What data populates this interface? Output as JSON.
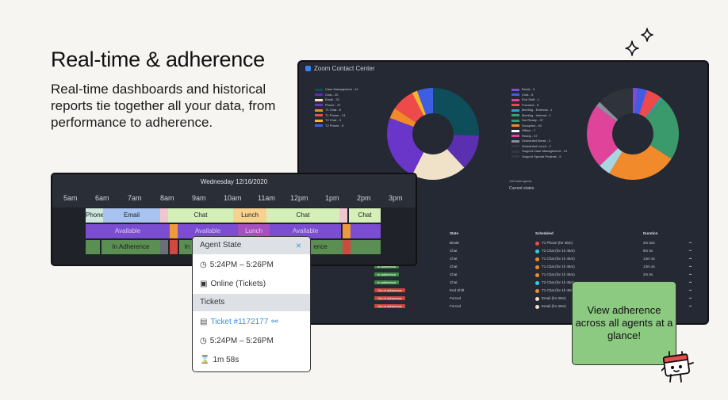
{
  "hero": {
    "title": "Real-time & adherence",
    "subtitle": "Real-time dashboards and historical reports tie together all your data, from performance to adherence."
  },
  "dashboard": {
    "app_title": "Zoom Contact Center",
    "left_legend": [
      {
        "label": "Case Management - 41",
        "color": "#0e4d5a"
      },
      {
        "label": "Chat - 20",
        "color": "#5a2fb0"
      },
      {
        "label": "Email - 31",
        "color": "#efe2c9"
      },
      {
        "label": "Phone - 37",
        "color": "#6a35c9"
      },
      {
        "label": "T1 Chat - 6",
        "color": "#f08a2a"
      },
      {
        "label": "T1 Phone - 13",
        "color": "#ef4a4a"
      },
      {
        "label": "T2 Chat - 3",
        "color": "#f5b52e"
      },
      {
        "label": "T2 Phone - 9",
        "color": "#3d5ee0"
      }
    ],
    "left_donut": [
      41,
      20,
      31,
      37,
      6,
      13,
      3,
      9
    ],
    "right_legend": [
      {
        "label": "Break - 3",
        "color": "#7b4be0"
      },
      {
        "label": "Chat - 5",
        "color": "#3d5ee0"
      },
      {
        "label": "End Shift - 1",
        "color": "#e0449a"
      },
      {
        "label": "Focused - 8",
        "color": "#ef4a4a"
      },
      {
        "label": "Meeting - External - 1",
        "color": "#2aa3c9"
      },
      {
        "label": "Meeting - Internal - 1",
        "color": "#35a372"
      },
      {
        "label": "Not Ready - 37",
        "color": "#3a9a6b"
      },
      {
        "label": "Occupied - 40",
        "color": "#f08a2a"
      },
      {
        "label": "Offline - 7",
        "color": "#ffffff"
      },
      {
        "label": "Ready - 37",
        "color": "#e0449a"
      },
      {
        "label": "Scheduled Break - 3",
        "color": "#8a8f99"
      },
      {
        "label": "Scheduled Lunch - 2",
        "color": "#333842"
      },
      {
        "label": "Support Case Management - 14",
        "color": "#333842"
      },
      {
        "label": "Support Special Projects - 5",
        "color": "#333842"
      }
    ],
    "right_donut": {
      "values": [
        3,
        5,
        1,
        8,
        1,
        1,
        37,
        40,
        7,
        37,
        3,
        2,
        14,
        5
      ],
      "colors": [
        "#7b4be0",
        "#3d5ee0",
        "#e0449a",
        "#ef4a4a",
        "#2aa3c9",
        "#35a372",
        "#3a9a6b",
        "#f08a2a",
        "#a7d6e0",
        "#e0449a",
        "#8a8f99",
        "#2f333c",
        "#2f333c",
        "#2f333c"
      ]
    },
    "total_agents": "106 total agents",
    "current_states": "Current states",
    "table": {
      "headers": [
        "State",
        "Scheduled",
        "Duration"
      ],
      "rows": [
        {
          "name": "",
          "adherence": "",
          "state": "Break",
          "sched": "T1 Phone (for 45m)",
          "dot": "#ef4a4a",
          "dur": "2m 52s"
        },
        {
          "name": "",
          "adherence": "",
          "state": "Chat",
          "sched": "T2 Chat (for 1h 45m)",
          "dot": "#2ad3e0",
          "dur": "8m 6s"
        },
        {
          "name": "",
          "adherence": "",
          "state": "Chat",
          "sched": "T1 Chat (for 1h 45m)",
          "dot": "#f08a2a",
          "dur": "13m 4s"
        },
        {
          "name": "",
          "adherence": "In adherence",
          "state": "Chat",
          "sched": "T1 Chat (for 1h 45m)",
          "dot": "#f08a2a",
          "dur": "13m 4s"
        },
        {
          "name": "",
          "adherence": "In adherence",
          "state": "Chat",
          "sched": "T1 Chat (for 1h 45m)",
          "dot": "#f08a2a",
          "dur": "2m 6s"
        },
        {
          "name": "",
          "adherence": "In adherence",
          "state": "Chat",
          "sched": "T2 Chat (for 1h 45m)",
          "dot": "#2ad3e0",
          "dur": ""
        },
        {
          "name": "",
          "adherence": "Out of adherence",
          "state": "End Shift",
          "sched": "T1 Chat (for 1h 45m)",
          "dot": "#f08a2a",
          "dur": ""
        },
        {
          "name": "",
          "adherence": "Out of adherence",
          "state": "Forced",
          "sched": "Email (for 30m)",
          "dot": "#efe2c9",
          "dur": ""
        },
        {
          "name": "",
          "adherence": "Out of adherence",
          "state": "Forced",
          "sched": "Email (for 30m)",
          "dot": "#efe2c9",
          "dur": ""
        }
      ]
    }
  },
  "schedule": {
    "date": "Wednesday 12/16/2020",
    "times": [
      "5am",
      "6am",
      "7am",
      "8am",
      "9am",
      "10am",
      "11am",
      "12pm",
      "1pm",
      "2pm",
      "3pm"
    ],
    "row1": {
      "phone": "Phone",
      "email": "Email",
      "chat1": "Chat",
      "lunch": "Lunch",
      "chat2": "Chat",
      "chat3": "Chat"
    },
    "row2": {
      "avail1": "Available",
      "avail2": "Available",
      "lunch": "Lunch",
      "avail3": "Available"
    },
    "row3": {
      "adh": "In Adherence",
      "adh2": "In",
      "adh3": "ence"
    }
  },
  "popup": {
    "title": "Agent State",
    "close": "×",
    "time1": "5:24PM – 5:26PM",
    "status": "Online (Tickets)",
    "section": "Tickets",
    "ticket": "Ticket #1172177",
    "time2": "5:24PM – 5:26PM",
    "duration": "1m 58s"
  },
  "callout": {
    "text": "View adherence across all agents at a glance!"
  }
}
